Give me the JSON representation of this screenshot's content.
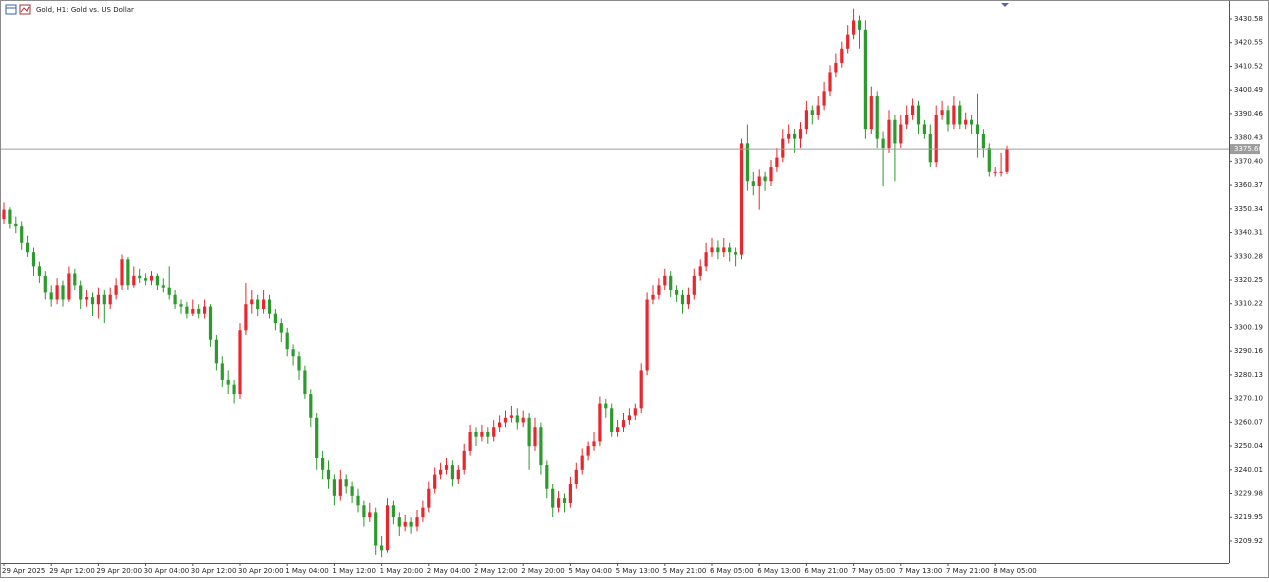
{
  "chart_data": {
    "type": "candlestick",
    "title": "Gold, H1:  Gold vs. US Dollar",
    "up_color": "#e8262d",
    "down_color": "#2c9a2c",
    "line_color": "#9c9c9c",
    "current_price": {
      "value": 3375.6,
      "label": "3375.60"
    },
    "ylim": [
      3200.6,
      3438.2
    ],
    "yticks": [
      3430.58,
      3420.55,
      3410.52,
      3400.49,
      3390.46,
      3380.43,
      {
        "value": 3370.4,
        "label": "3370.40"
      },
      3360.37,
      3350.34,
      3340.31,
      3330.28,
      3320.25,
      3310.22,
      3300.19,
      3290.16,
      3280.13,
      {
        "value": 3270.1,
        "label": "3270.10"
      },
      3260.07,
      3250.04,
      3240.01,
      3229.98,
      3219.95,
      3209.92
    ],
    "categories": [
      "29 Apr 2025",
      null,
      null,
      null,
      null,
      null,
      null,
      null,
      "29 Apr 12:00",
      null,
      null,
      null,
      null,
      null,
      null,
      null,
      "29 Apr 20:00",
      null,
      null,
      null,
      null,
      null,
      null,
      null,
      "30 Apr 04:00",
      null,
      null,
      null,
      null,
      null,
      null,
      null,
      "30 Apr 12:00",
      null,
      null,
      null,
      null,
      null,
      null,
      null,
      "30 Apr 20:00",
      null,
      null,
      null,
      null,
      null,
      null,
      null,
      "1 May 04:00",
      null,
      null,
      null,
      null,
      null,
      null,
      null,
      "1 May 12:00",
      null,
      null,
      null,
      null,
      null,
      null,
      null,
      "1 May 20:00",
      null,
      null,
      null,
      null,
      null,
      null,
      null,
      "2 May 04:00",
      null,
      null,
      null,
      null,
      null,
      null,
      null,
      "2 May 12:00",
      null,
      null,
      null,
      null,
      null,
      null,
      null,
      "2 May 20:00",
      null,
      null,
      null,
      null,
      null,
      null,
      null,
      "5 May 04:00",
      null,
      null,
      null,
      null,
      null,
      null,
      null,
      "5 May 13:00",
      null,
      null,
      null,
      null,
      null,
      null,
      null,
      "5 May 21:00",
      null,
      null,
      null,
      null,
      null,
      null,
      null,
      "6 May 05:00",
      null,
      null,
      null,
      null,
      null,
      null,
      null,
      "6 May 13:00",
      null,
      null,
      null,
      null,
      null,
      null,
      null,
      "6 May 21:00",
      null,
      null,
      null,
      null,
      null,
      null,
      null,
      "7 May 05:00",
      null,
      null,
      null,
      null,
      null,
      null,
      null,
      "7 May 13:00",
      null,
      null,
      null,
      null,
      null,
      null,
      null,
      "7 May 21:00",
      null,
      null,
      null,
      null,
      null,
      null,
      null,
      "8 May 05:00",
      null,
      null
    ],
    "ohlc": [
      [
        3346,
        3353,
        3344,
        3350
      ],
      [
        3350,
        3351,
        3342,
        3344
      ],
      [
        3344,
        3347,
        3340,
        3343
      ],
      [
        3343,
        3345,
        3333,
        3336
      ],
      [
        3336,
        3339,
        3330,
        3332
      ],
      [
        3332,
        3334,
        3322,
        3326
      ],
      [
        3326,
        3328,
        3319,
        3322
      ],
      [
        3322,
        3324,
        3312,
        3315
      ],
      [
        3315,
        3318,
        3309,
        3312
      ],
      [
        3312,
        3321,
        3310,
        3318
      ],
      [
        3318,
        3320,
        3309,
        3312
      ],
      [
        3312,
        3326,
        3311,
        3323
      ],
      [
        3323,
        3325,
        3316,
        3318
      ],
      [
        3318,
        3320,
        3308,
        3312
      ],
      [
        3312,
        3316,
        3309,
        3313
      ],
      [
        3313,
        3315,
        3305,
        3310
      ],
      [
        3310,
        3317,
        3304,
        3314
      ],
      [
        3314,
        3316,
        3302,
        3310
      ],
      [
        3310,
        3317,
        3308,
        3314
      ],
      [
        3314,
        3321,
        3312,
        3318
      ],
      [
        3318,
        3331,
        3316,
        3329
      ],
      [
        3329,
        3330,
        3316,
        3318
      ],
      [
        3318,
        3326,
        3317,
        3322
      ],
      [
        3322,
        3325,
        3319,
        3321
      ],
      [
        3321,
        3323,
        3318,
        3320
      ],
      [
        3320,
        3324,
        3318,
        3322
      ],
      [
        3322,
        3323,
        3316,
        3318
      ],
      [
        3318,
        3321,
        3315,
        3317
      ],
      [
        3317,
        3326,
        3312,
        3314
      ],
      [
        3314,
        3316,
        3308,
        3310
      ],
      [
        3310,
        3312,
        3306,
        3309
      ],
      [
        3309,
        3311,
        3304,
        3306
      ],
      [
        3306,
        3312,
        3305,
        3308
      ],
      [
        3308,
        3310,
        3304,
        3306
      ],
      [
        3306,
        3312,
        3304,
        3309
      ],
      [
        3309,
        3310,
        3292,
        3295
      ],
      [
        3295,
        3297,
        3282,
        3285
      ],
      [
        3285,
        3288,
        3275,
        3278
      ],
      [
        3278,
        3282,
        3272,
        3276
      ],
      [
        3276,
        3278,
        3268,
        3272
      ],
      [
        3272,
        3302,
        3270,
        3299
      ],
      [
        3299,
        3319,
        3297,
        3310
      ],
      [
        3310,
        3316,
        3306,
        3312
      ],
      [
        3312,
        3314,
        3305,
        3308
      ],
      [
        3308,
        3316,
        3306,
        3312
      ],
      [
        3312,
        3314,
        3304,
        3306
      ],
      [
        3306,
        3308,
        3299,
        3302
      ],
      [
        3302,
        3304,
        3294,
        3298
      ],
      [
        3298,
        3300,
        3288,
        3291
      ],
      [
        3291,
        3293,
        3284,
        3288
      ],
      [
        3288,
        3290,
        3278,
        3282
      ],
      [
        3282,
        3284,
        3270,
        3272
      ],
      [
        3272,
        3274,
        3258,
        3262
      ],
      [
        3262,
        3264,
        3240,
        3245
      ],
      [
        3245,
        3248,
        3236,
        3240
      ],
      [
        3240,
        3244,
        3232,
        3236
      ],
      [
        3236,
        3238,
        3225,
        3229
      ],
      [
        3229,
        3240,
        3227,
        3236
      ],
      [
        3236,
        3238,
        3230,
        3233
      ],
      [
        3233,
        3235,
        3226,
        3229
      ],
      [
        3229,
        3232,
        3222,
        3225
      ],
      [
        3225,
        3227,
        3216,
        3220
      ],
      [
        3220,
        3226,
        3218,
        3222
      ],
      [
        3222,
        3224,
        3204,
        3208
      ],
      [
        3208,
        3212,
        3203,
        3206
      ],
      [
        3206,
        3228,
        3205,
        3225
      ],
      [
        3225,
        3227,
        3217,
        3220
      ],
      [
        3220,
        3222,
        3212,
        3216
      ],
      [
        3216,
        3221,
        3214,
        3218
      ],
      [
        3218,
        3220,
        3213,
        3216
      ],
      [
        3216,
        3223,
        3214,
        3220
      ],
      [
        3220,
        3227,
        3218,
        3224
      ],
      [
        3224,
        3235,
        3222,
        3232
      ],
      [
        3232,
        3241,
        3230,
        3238
      ],
      [
        3238,
        3243,
        3236,
        3240
      ],
      [
        3240,
        3245,
        3238,
        3242
      ],
      [
        3242,
        3244,
        3233,
        3236
      ],
      [
        3236,
        3242,
        3234,
        3240
      ],
      [
        3240,
        3251,
        3238,
        3248
      ],
      [
        3248,
        3259,
        3246,
        3256
      ],
      [
        3256,
        3258,
        3250,
        3254
      ],
      [
        3254,
        3259,
        3252,
        3256
      ],
      [
        3256,
        3258,
        3251,
        3254
      ],
      [
        3254,
        3261,
        3252,
        3258
      ],
      [
        3258,
        3263,
        3256,
        3260
      ],
      [
        3260,
        3265,
        3258,
        3262
      ],
      [
        3262,
        3267,
        3260,
        3263
      ],
      [
        3263,
        3266,
        3257,
        3260
      ],
      [
        3260,
        3265,
        3258,
        3262
      ],
      [
        3262,
        3264,
        3240,
        3250
      ],
      [
        3250,
        3262,
        3248,
        3258
      ],
      [
        3258,
        3260,
        3238,
        3242
      ],
      [
        3242,
        3244,
        3228,
        3232
      ],
      [
        3232,
        3234,
        3220,
        3224
      ],
      [
        3224,
        3231,
        3222,
        3228
      ],
      [
        3228,
        3230,
        3222,
        3226
      ],
      [
        3226,
        3237,
        3224,
        3234
      ],
      [
        3234,
        3243,
        3232,
        3240
      ],
      [
        3240,
        3249,
        3238,
        3246
      ],
      [
        3246,
        3252,
        3244,
        3250
      ],
      [
        3250,
        3256,
        3248,
        3252
      ],
      [
        3252,
        3271,
        3250,
        3268
      ],
      [
        3268,
        3270,
        3262,
        3266
      ],
      [
        3266,
        3268,
        3254,
        3256
      ],
      [
        3256,
        3261,
        3254,
        3258
      ],
      [
        3258,
        3264,
        3256,
        3261
      ],
      [
        3261,
        3266,
        3259,
        3263
      ],
      [
        3263,
        3268,
        3261,
        3266
      ],
      [
        3266,
        3285,
        3264,
        3282
      ],
      [
        3282,
        3315,
        3280,
        3312
      ],
      [
        3312,
        3318,
        3310,
        3314
      ],
      [
        3314,
        3321,
        3312,
        3318
      ],
      [
        3318,
        3325,
        3316,
        3322
      ],
      [
        3322,
        3324,
        3313,
        3316
      ],
      [
        3316,
        3318,
        3311,
        3314
      ],
      [
        3314,
        3316,
        3306,
        3310
      ],
      [
        3310,
        3317,
        3308,
        3314
      ],
      [
        3314,
        3325,
        3312,
        3322
      ],
      [
        3322,
        3329,
        3320,
        3326
      ],
      [
        3326,
        3336,
        3324,
        3332
      ],
      [
        3332,
        3338,
        3330,
        3334
      ],
      [
        3334,
        3337,
        3329,
        3332
      ],
      [
        3332,
        3338,
        3330,
        3334
      ],
      [
        3334,
        3336,
        3328,
        3332
      ],
      [
        3332,
        3334,
        3326,
        3331
      ],
      [
        3331,
        3380,
        3329,
        3378
      ],
      [
        3378,
        3386,
        3358,
        3362
      ],
      [
        3362,
        3366,
        3356,
        3360
      ],
      [
        3360,
        3367,
        3350,
        3364
      ],
      [
        3364,
        3366,
        3358,
        3362
      ],
      [
        3362,
        3371,
        3360,
        3368
      ],
      [
        3368,
        3376,
        3366,
        3372
      ],
      [
        3372,
        3384,
        3370,
        3380
      ],
      [
        3380,
        3386,
        3378,
        3382
      ],
      [
        3382,
        3384,
        3374,
        3380
      ],
      [
        3380,
        3387,
        3376,
        3384
      ],
      [
        3384,
        3396,
        3382,
        3392
      ],
      [
        3392,
        3394,
        3386,
        3390
      ],
      [
        3390,
        3398,
        3388,
        3394
      ],
      [
        3394,
        3404,
        3392,
        3400
      ],
      [
        3400,
        3411,
        3398,
        3408
      ],
      [
        3408,
        3416,
        3406,
        3412
      ],
      [
        3412,
        3421,
        3410,
        3418
      ],
      [
        3418,
        3428,
        3416,
        3424
      ],
      [
        3424,
        3435,
        3422,
        3430
      ],
      [
        3430,
        3432,
        3418,
        3426
      ],
      [
        3426,
        3430,
        3380,
        3384
      ],
      [
        3384,
        3402,
        3382,
        3398
      ],
      [
        3398,
        3400,
        3376,
        3380
      ],
      [
        3380,
        3383,
        3360,
        3376
      ],
      [
        3376,
        3392,
        3374,
        3388
      ],
      [
        3388,
        3390,
        3362,
        3378
      ],
      [
        3378,
        3390,
        3376,
        3386
      ],
      [
        3386,
        3394,
        3384,
        3390
      ],
      [
        3390,
        3397,
        3388,
        3394
      ],
      [
        3394,
        3396,
        3382,
        3386
      ],
      [
        3386,
        3388,
        3380,
        3382
      ],
      [
        3382,
        3386,
        3368,
        3370
      ],
      [
        3370,
        3394,
        3368,
        3390
      ],
      [
        3390,
        3396,
        3388,
        3392
      ],
      [
        3392,
        3394,
        3383,
        3386
      ],
      [
        3386,
        3398,
        3384,
        3394
      ],
      [
        3394,
        3396,
        3384,
        3386
      ],
      [
        3386,
        3391,
        3384,
        3388
      ],
      [
        3388,
        3390,
        3382,
        3386
      ],
      [
        3386,
        3399,
        3372,
        3382
      ],
      [
        3382,
        3384,
        3372,
        3376
      ],
      [
        3376,
        3378,
        3364,
        3366
      ],
      [
        3366,
        3368,
        3364,
        3366
      ],
      [
        3366,
        3374,
        3364,
        3366
      ],
      [
        3366,
        3377,
        3365,
        3375.6
      ]
    ]
  }
}
